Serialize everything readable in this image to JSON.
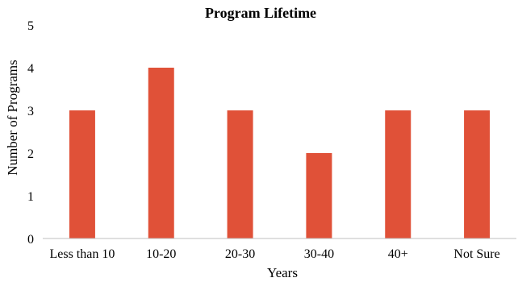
{
  "chart_data": {
    "type": "bar",
    "title": "Program Lifetime",
    "xlabel": "Years",
    "ylabel": "Number of Programs",
    "categories": [
      "Less than 10",
      "10-20",
      "20-30",
      "30-40",
      "40+",
      "Not Sure"
    ],
    "values": [
      3,
      4,
      3,
      2,
      3,
      3
    ],
    "ylim": [
      0,
      5
    ],
    "yticks": [
      "0",
      "1",
      "2",
      "3",
      "4",
      "5"
    ],
    "grid": false,
    "legend": "none",
    "bar_color": "#e05138",
    "axis_color": "#bfbfbf"
  }
}
